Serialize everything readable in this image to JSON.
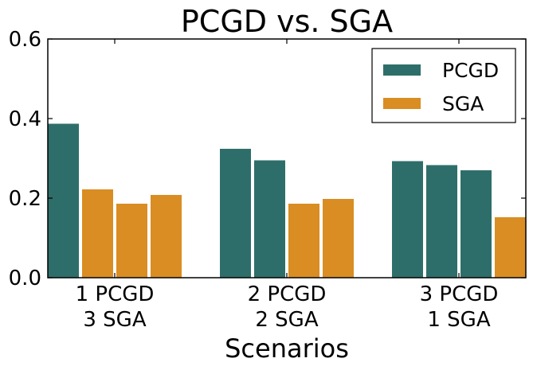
{
  "chart_data": {
    "type": "bar",
    "title": "PCGD vs. SGA",
    "xlabel": "Scenarios",
    "ylabel": "",
    "ylim": [
      0,
      0.6
    ],
    "yticks": [
      "0.0",
      "0.2",
      "0.4",
      "0.6"
    ],
    "ytick_values": [
      0,
      0.2,
      0.4,
      0.6
    ],
    "grid": false,
    "legend_position": "top-right",
    "legend": [
      {
        "name": "PCGD",
        "color": "#2e6e6a"
      },
      {
        "name": "SGA",
        "color": "#d98d22"
      }
    ],
    "groups": [
      {
        "label_line1": "1 PCGD",
        "label_line2": "3 SGA",
        "bars": [
          {
            "series": "PCGD",
            "value": 0.387
          },
          {
            "series": "SGA",
            "value": 0.222
          },
          {
            "series": "SGA",
            "value": 0.186
          },
          {
            "series": "SGA",
            "value": 0.208
          }
        ]
      },
      {
        "label_line1": "2 PCGD",
        "label_line2": "2 SGA",
        "bars": [
          {
            "series": "PCGD",
            "value": 0.324
          },
          {
            "series": "PCGD",
            "value": 0.295
          },
          {
            "series": "SGA",
            "value": 0.186
          },
          {
            "series": "SGA",
            "value": 0.198
          }
        ]
      },
      {
        "label_line1": "3 PCGD",
        "label_line2": "1 SGA",
        "bars": [
          {
            "series": "PCGD",
            "value": 0.293
          },
          {
            "series": "PCGD",
            "value": 0.283
          },
          {
            "series": "PCGD",
            "value": 0.27
          },
          {
            "series": "SGA",
            "value": 0.152
          }
        ]
      }
    ]
  }
}
